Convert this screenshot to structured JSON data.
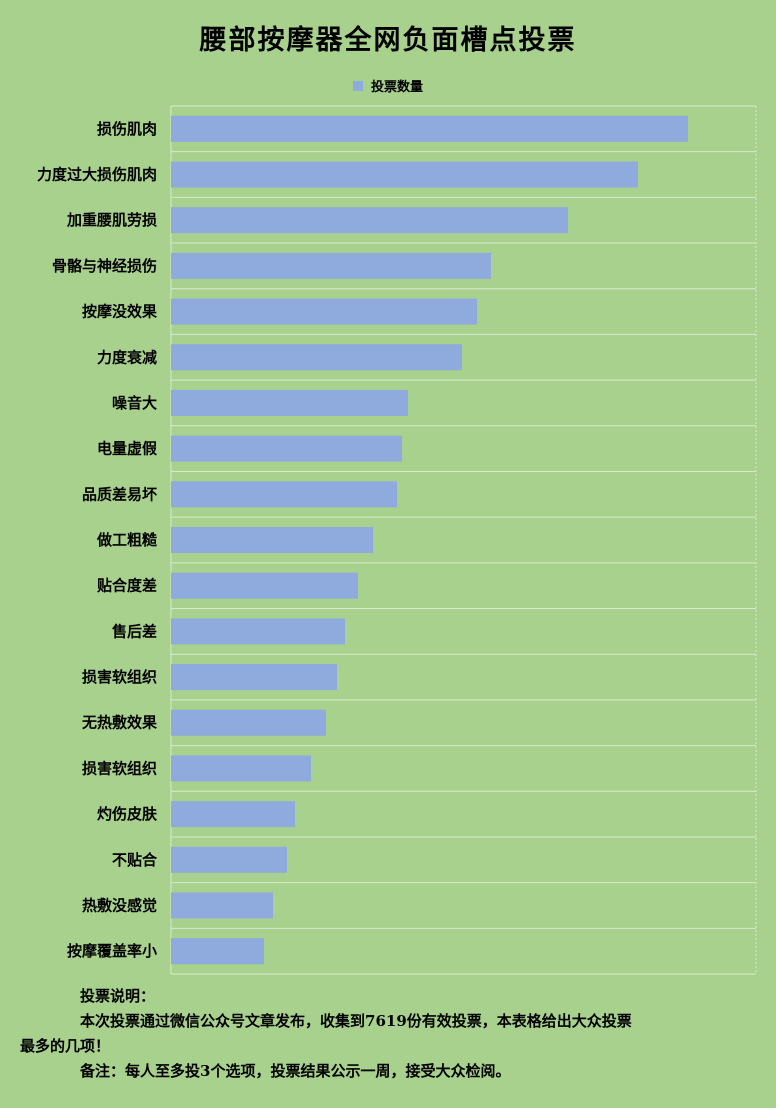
{
  "chart_data": {
    "type": "bar",
    "orientation": "horizontal",
    "title": "腰部按摩器全网负面槽点投票",
    "legend": [
      "投票数量"
    ],
    "legend_position": "top",
    "series": [
      {
        "name": "投票数量",
        "color": "#8faadc",
        "values": [
          517,
          467,
          397,
          320,
          306,
          291,
          237,
          231,
          226,
          202,
          187,
          174,
          166,
          155,
          140,
          124,
          116,
          102,
          93
        ]
      }
    ],
    "categories": [
      "损伤肌肉",
      "力度过大损伤肌肉",
      "加重腰肌劳损",
      "骨骼与神经损伤",
      "按摩没效果",
      "力度衰减",
      "噪音大",
      "电量虚假",
      "品质差易坏",
      "做工粗糙",
      "贴合度差",
      "售后差",
      "损害软组织",
      "无热敷效果",
      "损害软组织",
      "灼伤皮肤",
      "不贴合",
      "热敷没感觉",
      "按摩覆盖率小"
    ],
    "xlim": [
      0,
      585
    ],
    "grid": true
  },
  "notes": {
    "heading": "投票说明：",
    "line1": "本次投票通过微信公众号文章发布，收集到7619份有效投票，本表格给出大众投票",
    "line2": "最多的几项！",
    "line3": "备注：每人至多投3个选项，投票结果公示一周，接受大众检阅。"
  },
  "colors": {
    "background": "#a9d18e",
    "bar": "#8faadc",
    "grid": "#d9e7cf"
  }
}
